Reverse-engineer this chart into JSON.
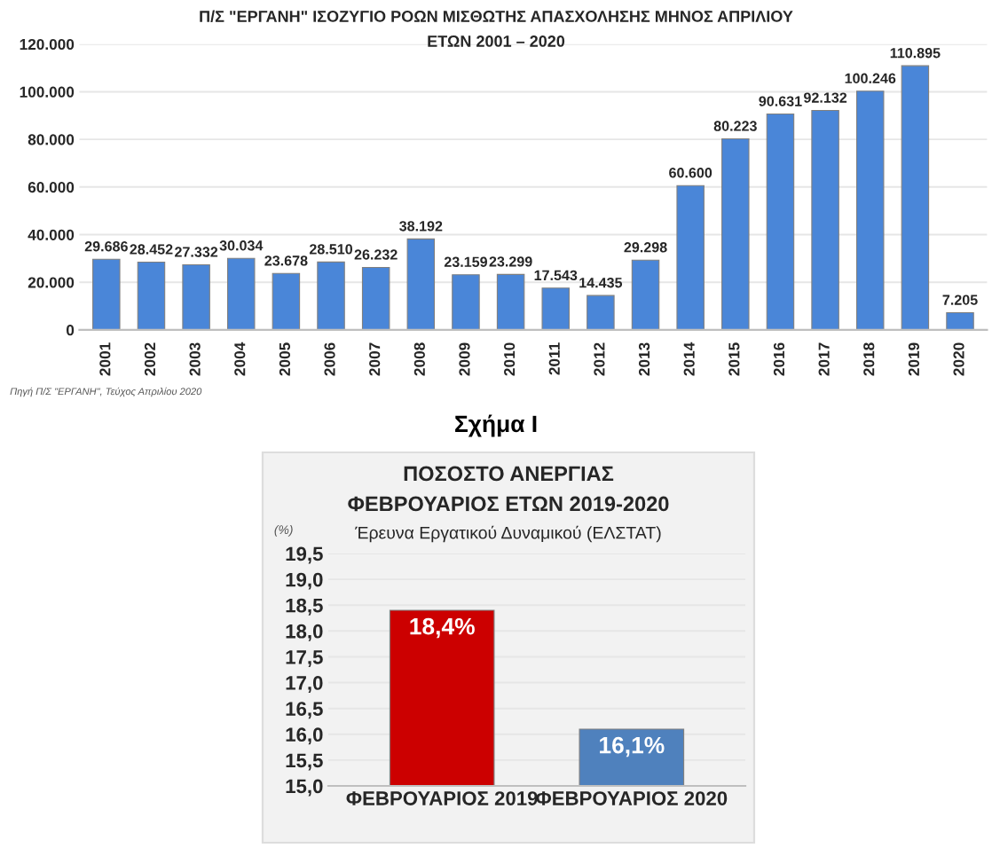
{
  "chart_data": [
    {
      "type": "bar",
      "title": "Π/Σ \"ΕΡΓΑΝΗ\" ΙΣΟΖΥΓΙΟ ΡΟΩΝ ΜΙΣΘΩΤΗΣ ΑΠΑΣΧΟΛΗΣΗΣ ΜΗΝΟΣ ΑΠΡΙΛΙΟΥ\nΕΤΩΝ 2001 – 2020",
      "categories": [
        "2001",
        "2002",
        "2003",
        "2004",
        "2005",
        "2006",
        "2007",
        "2008",
        "2009",
        "2010",
        "2011",
        "2012",
        "2013",
        "2014",
        "2015",
        "2016",
        "2017",
        "2018",
        "2019",
        "2020"
      ],
      "values": [
        29686,
        28452,
        27332,
        30034,
        23678,
        28510,
        26232,
        38192,
        23159,
        23299,
        17543,
        14435,
        29298,
        60600,
        80223,
        90631,
        92132,
        100246,
        110895,
        7205
      ],
      "value_labels": [
        "29.686",
        "28.452",
        "27.332",
        "30.034",
        "23.678",
        "28.510",
        "26.232",
        "38.192",
        "23.159",
        "23.299",
        "17.543",
        "14.435",
        "29.298",
        "60.600",
        "80.223",
        "90.631",
        "92.132",
        "100.246",
        "110.895",
        "7.205"
      ],
      "color": "#4a86d8",
      "ylim": [
        0,
        120000
      ],
      "yticks": [
        {
          "value": 0,
          "label": "0"
        },
        {
          "value": 20000,
          "label": "20.000"
        },
        {
          "value": 40000,
          "label": "40.000"
        },
        {
          "value": 60000,
          "label": "60.000"
        },
        {
          "value": 80000,
          "label": "80.000"
        },
        {
          "value": 100000,
          "label": "100.000"
        },
        {
          "value": 120000,
          "label": "120.000"
        }
      ],
      "grid": "y",
      "annotations": [
        "Πηγή Π/Σ \"ΕΡΓΑΝΗ\", Τεύχος Απριλίου 2020"
      ]
    },
    {
      "type": "bar",
      "title": "ΠΟΣΟΣΤΟ ΑΝΕΡΓΙΑΣ\nΦΕΒΡΟΥΑΡΙΟΣ ΕΤΩΝ 2019-2020",
      "subtitle": "Έρευνα Εργατικού Δυναμικού (ΕΛΣΤΑΤ)",
      "ylabel": "(%)",
      "categories": [
        "ΦΕΒΡΟΥΑΡΙΟΣ 2019",
        "ΦΕΒΡΟΥΑΡΙΟΣ 2020"
      ],
      "values": [
        18.4,
        16.1
      ],
      "value_labels": [
        "18,4%",
        "16,1%"
      ],
      "colors": [
        "#cc0000",
        "#4f81bd"
      ],
      "ylim": [
        15,
        19.5
      ],
      "yticks": [
        {
          "value": 15,
          "label": "15,0"
        },
        {
          "value": 15.5,
          "label": "15,5"
        },
        {
          "value": 16,
          "label": "16,0"
        },
        {
          "value": 16.5,
          "label": "16,5"
        },
        {
          "value": 17,
          "label": "17,0"
        },
        {
          "value": 17.5,
          "label": "17,5"
        },
        {
          "value": 18,
          "label": "18,0"
        },
        {
          "value": 18.5,
          "label": "18,5"
        },
        {
          "value": 19,
          "label": "19,0"
        },
        {
          "value": 19.5,
          "label": "19,5"
        }
      ],
      "grid": "y",
      "annotations": [
        "Σχήμα Ι"
      ]
    }
  ]
}
